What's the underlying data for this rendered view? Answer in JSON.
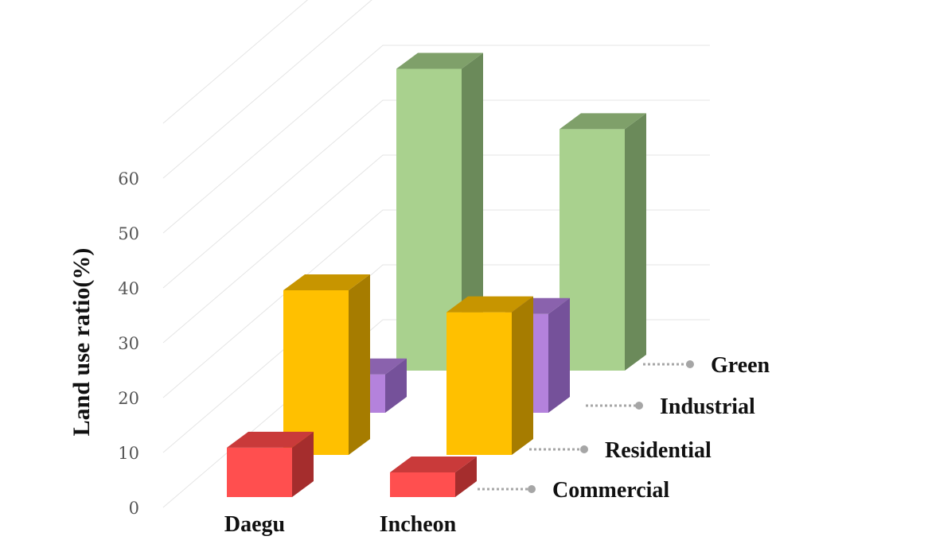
{
  "chart_data": {
    "type": "bar",
    "subtype": "3d-bar",
    "ylabel": "Land use ratio(%)",
    "ylim": [
      0,
      70
    ],
    "yticks": [
      "0",
      "10",
      "20",
      "30",
      "40",
      "50",
      "60"
    ],
    "categories": [
      "Daegu",
      "Incheon"
    ],
    "series": [
      {
        "name": "Commercial",
        "values": [
          9,
          4.5
        ],
        "colors": {
          "front": "#ff4f4f",
          "top": "#c93a3a",
          "side": "#a52d2d"
        }
      },
      {
        "name": "Residential",
        "values": [
          30,
          26
        ],
        "colors": {
          "front": "#ffc000",
          "top": "#c79500",
          "side": "#a67c00"
        }
      },
      {
        "name": "Industrial",
        "values": [
          7,
          18
        ],
        "colors": {
          "front": "#b482dc",
          "top": "#8a62ad",
          "side": "#75519a"
        }
      },
      {
        "name": "Green",
        "values": [
          55,
          44
        ],
        "colors": {
          "front": "#a9d18e",
          "top": "#7fa06a",
          "side": "#6b8a5a"
        }
      }
    ],
    "grid": true,
    "legend": "series labels along right side"
  }
}
